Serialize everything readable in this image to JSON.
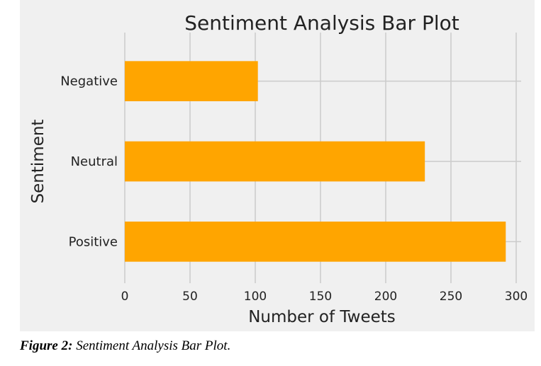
{
  "colors": {
    "figure_background": "#f0f0f0",
    "bar": "#ffa500",
    "grid": "#cbcbcb",
    "text": "#222222"
  },
  "caption": {
    "label": "Figure 2:",
    "text": "Sentiment Analysis Bar Plot."
  },
  "chart_data": {
    "type": "bar",
    "orientation": "horizontal",
    "title": "Sentiment Analysis Bar Plot",
    "xlabel": "Number of Tweets",
    "ylabel": "Sentiment",
    "categories": [
      "Negative",
      "Neutral",
      "Positive"
    ],
    "values": [
      102,
      230,
      292
    ],
    "xlim": [
      0,
      305
    ],
    "xticks": [
      0,
      50,
      100,
      150,
      200,
      250,
      300
    ],
    "grid": true,
    "legend": "none"
  }
}
